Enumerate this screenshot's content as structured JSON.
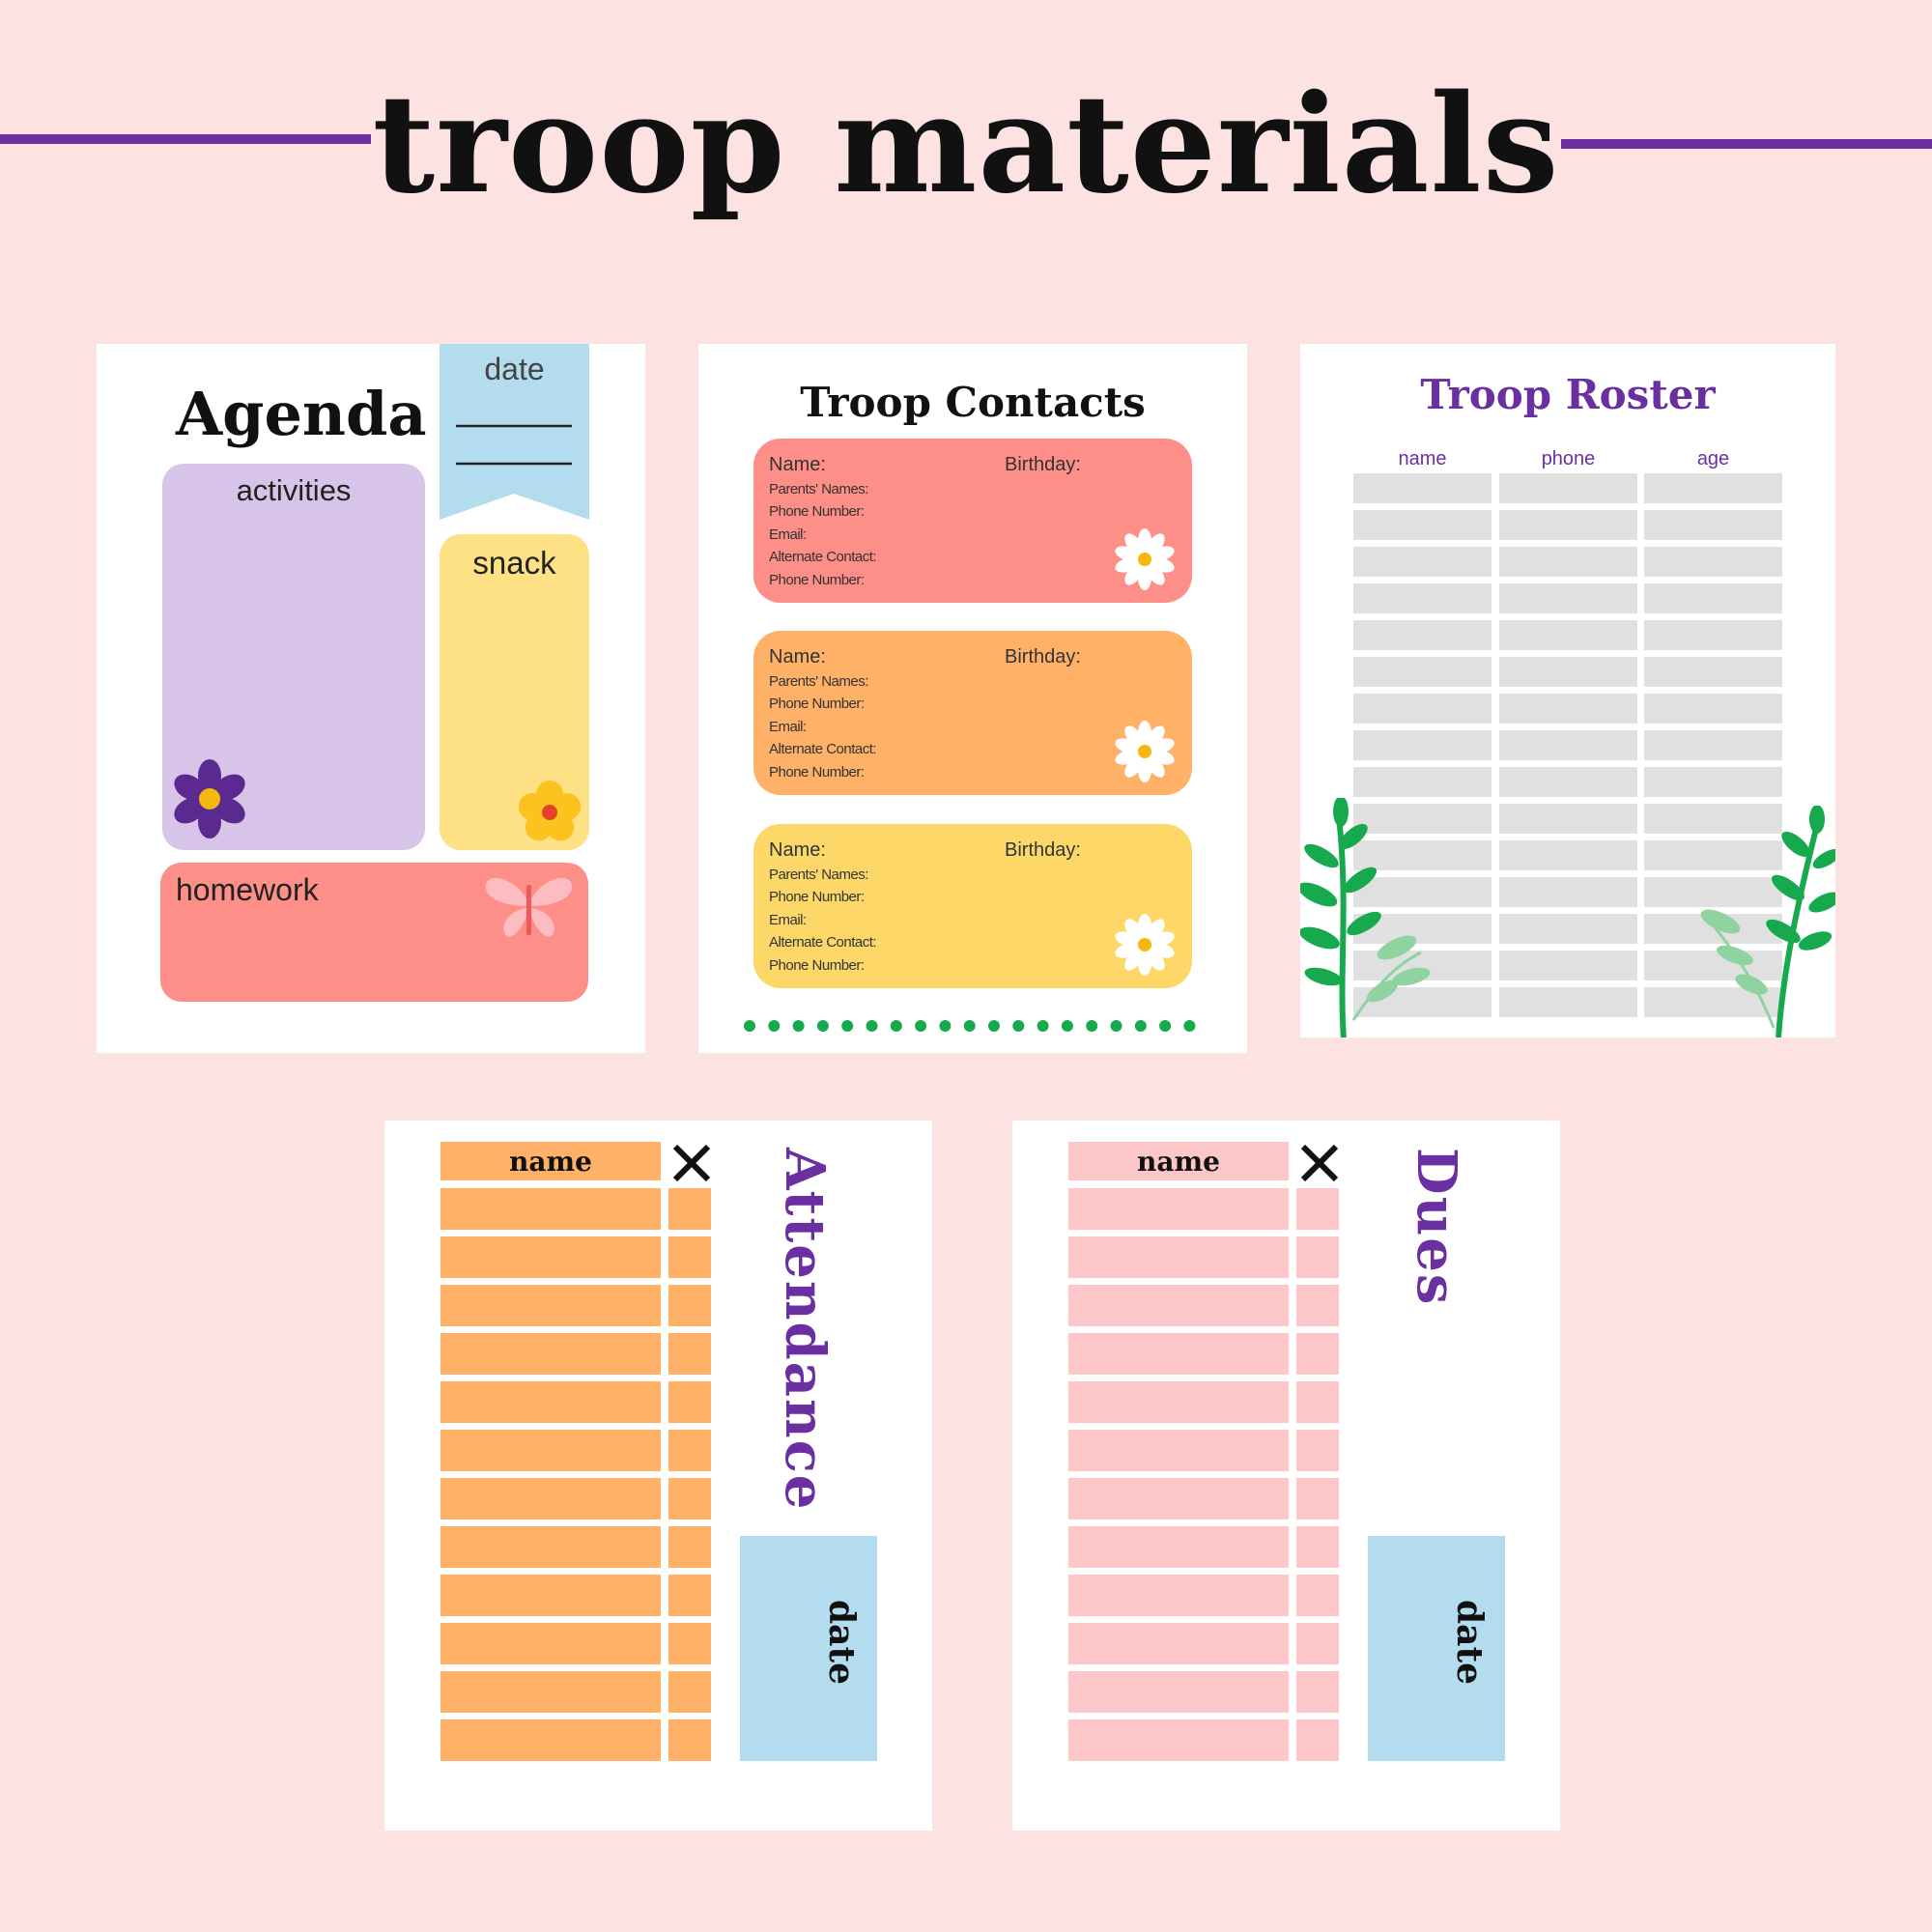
{
  "page": {
    "title": "troop materials",
    "accent_color": "#6a2fa0",
    "background_color": "#fde2e2"
  },
  "agenda": {
    "title": "Agenda",
    "date_label": "date",
    "activities_label": "activities",
    "snack_label": "snack",
    "homework_label": "homework",
    "icons": [
      "purple-flower-icon",
      "yellow-flower-icon",
      "butterfly-icon"
    ]
  },
  "contacts": {
    "title": "Troop Contacts",
    "cards": [
      {
        "name_label": "Name:",
        "birthday_label": "Birthday:",
        "parents_label": "Parents' Names:",
        "phone_label": "Phone Number:",
        "email_label": "Email:",
        "alternate_label": "Alternate Contact:",
        "alt_phone_label": "Phone Number:",
        "color": "#fd8e88"
      },
      {
        "name_label": "Name:",
        "birthday_label": "Birthday:",
        "parents_label": "Parents' Names:",
        "phone_label": "Phone Number:",
        "email_label": "Email:",
        "alternate_label": "Alternate Contact:",
        "alt_phone_label": "Phone Number:",
        "color": "#ffb167"
      },
      {
        "name_label": "Name:",
        "birthday_label": "Birthday:",
        "parents_label": "Parents' Names:",
        "phone_label": "Phone Number:",
        "email_label": "Email:",
        "alternate_label": "Alternate Contact:",
        "alt_phone_label": "Phone Number:",
        "color": "#fdd869"
      }
    ]
  },
  "roster": {
    "title": "Troop Roster",
    "columns": [
      "name",
      "phone",
      "age"
    ],
    "row_count": 15,
    "icons": [
      "leaf-branch-icon"
    ]
  },
  "attendance": {
    "title": "Attendance",
    "name_header": "name",
    "mark_header": "X",
    "date_label": "date",
    "row_count": 12,
    "row_color": "#ffb167"
  },
  "dues": {
    "title": "Dues",
    "name_header": "name",
    "mark_header": "X",
    "date_label": "date",
    "row_count": 12,
    "row_color": "#fdc6c8"
  }
}
